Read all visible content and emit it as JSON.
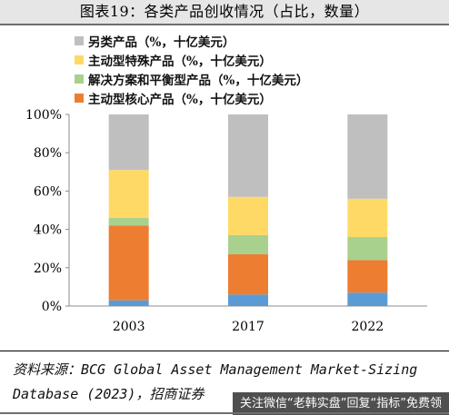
{
  "figure": {
    "title": "图表19：各类产品创收情况（占比，数量）",
    "source": "资料来源：BCG Global Asset Management Market-Sizing Database (2023)，招商证券",
    "watermark": "关注微信“老韩实盘”回复“指标”免费领"
  },
  "chart_data": {
    "type": "bar",
    "stacked": true,
    "categories": [
      "2003",
      "2017",
      "2022"
    ],
    "ylim": [
      0,
      100
    ],
    "yticks": [
      "0%",
      "20%",
      "40%",
      "60%",
      "80%",
      "100%"
    ],
    "grid": false,
    "legend_position": "top-left",
    "series": [
      {
        "name": "主动型核心产品（%，十亿美元）",
        "color": "#ed7d31",
        "values": [
          39,
          21,
          17
        ]
      },
      {
        "name": "解决方案和平衡型产品（%，十亿美元）",
        "color": "#a9d18e",
        "values": [
          4,
          10,
          12
        ]
      },
      {
        "name": "主动型特殊产品（%，十亿美元）",
        "color": "#ffd966",
        "values": [
          25,
          20,
          20
        ]
      },
      {
        "name": "另类产品（%，十亿美元）",
        "color": "#bfbfbf",
        "values": [
          29,
          43,
          44
        ]
      }
    ],
    "base_series": {
      "color": "#5b9bd5",
      "values": [
        3,
        6,
        7
      ]
    }
  }
}
